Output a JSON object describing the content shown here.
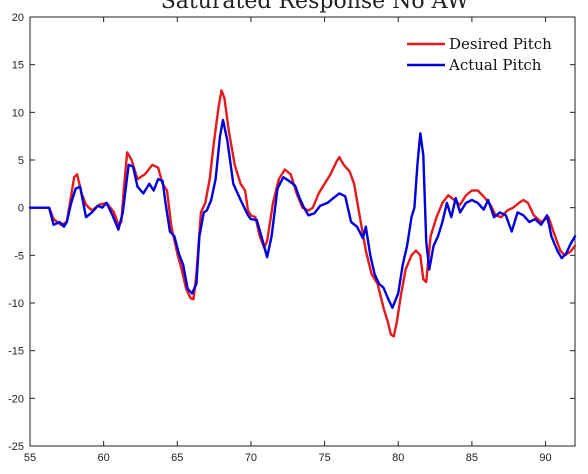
{
  "chart_data": {
    "type": "line",
    "title": "Saturated Response No AW",
    "xlabel": "",
    "ylabel": "",
    "xlim": [
      55,
      92
    ],
    "ylim": [
      -25,
      20
    ],
    "xticks": [
      55,
      60,
      65,
      70,
      75,
      80,
      85,
      90
    ],
    "yticks": [
      20,
      15,
      10,
      5,
      0,
      -5,
      -10,
      -15,
      -20,
      -25
    ],
    "grid": false,
    "legend_position": "top-right",
    "series": [
      {
        "name": "Desired Pitch",
        "color": "#e41a1c",
        "points": [
          [
            55,
            0
          ],
          [
            56.3,
            0
          ],
          [
            56.6,
            -1.2
          ],
          [
            57.1,
            -1.8
          ],
          [
            57.5,
            -1.5
          ],
          [
            58.0,
            3.2
          ],
          [
            58.2,
            3.5
          ],
          [
            58.5,
            1.5
          ],
          [
            58.8,
            0.3
          ],
          [
            59.2,
            -0.3
          ],
          [
            59.7,
            0.3
          ],
          [
            60.2,
            0.5
          ],
          [
            60.7,
            -0.5
          ],
          [
            61.0,
            -1.8
          ],
          [
            61.2,
            -1.5
          ],
          [
            61.4,
            2.5
          ],
          [
            61.6,
            5.8
          ],
          [
            61.9,
            5.0
          ],
          [
            62.3,
            3.0
          ],
          [
            62.8,
            3.5
          ],
          [
            63.3,
            4.5
          ],
          [
            63.7,
            4.2
          ],
          [
            64.0,
            2.5
          ],
          [
            64.3,
            1.8
          ],
          [
            64.6,
            -2.0
          ],
          [
            65.0,
            -4.8
          ],
          [
            65.3,
            -6.5
          ],
          [
            65.6,
            -8.5
          ],
          [
            65.9,
            -9.5
          ],
          [
            66.1,
            -9.6
          ],
          [
            66.3,
            -7.0
          ],
          [
            66.6,
            -0.5
          ],
          [
            66.9,
            0.5
          ],
          [
            67.2,
            3.0
          ],
          [
            67.5,
            7.0
          ],
          [
            67.8,
            10.5
          ],
          [
            68.0,
            12.3
          ],
          [
            68.2,
            11.5
          ],
          [
            68.5,
            8.0
          ],
          [
            68.9,
            4.5
          ],
          [
            69.3,
            2.5
          ],
          [
            69.6,
            1.8
          ],
          [
            69.8,
            -0.3
          ],
          [
            70.0,
            -0.8
          ],
          [
            70.3,
            -1.0
          ],
          [
            70.6,
            -3.0
          ],
          [
            70.9,
            -4.2
          ],
          [
            71.1,
            -3.5
          ],
          [
            71.5,
            0.5
          ],
          [
            71.9,
            3.0
          ],
          [
            72.3,
            4.0
          ],
          [
            72.7,
            3.5
          ],
          [
            73.1,
            1.5
          ],
          [
            73.5,
            0.0
          ],
          [
            73.9,
            -0.3
          ],
          [
            74.2,
            0.0
          ],
          [
            74.6,
            1.5
          ],
          [
            75.0,
            2.5
          ],
          [
            75.4,
            3.5
          ],
          [
            75.8,
            4.8
          ],
          [
            76.0,
            5.3
          ],
          [
            76.3,
            4.5
          ],
          [
            76.7,
            3.8
          ],
          [
            77.0,
            2.5
          ],
          [
            77.4,
            -1.0
          ],
          [
            77.8,
            -4.5
          ],
          [
            78.2,
            -7.0
          ],
          [
            78.6,
            -8.0
          ],
          [
            79.0,
            -10.5
          ],
          [
            79.3,
            -12.0
          ],
          [
            79.5,
            -13.3
          ],
          [
            79.7,
            -13.5
          ],
          [
            79.9,
            -12.0
          ],
          [
            80.2,
            -9.0
          ],
          [
            80.5,
            -6.5
          ],
          [
            80.9,
            -5.0
          ],
          [
            81.2,
            -4.5
          ],
          [
            81.5,
            -5.0
          ],
          [
            81.7,
            -7.5
          ],
          [
            81.9,
            -7.8
          ],
          [
            82.2,
            -3.0
          ],
          [
            82.6,
            -1.0
          ],
          [
            83.0,
            0.5
          ],
          [
            83.4,
            1.3
          ],
          [
            83.8,
            0.8
          ],
          [
            84.2,
            0.3
          ],
          [
            84.6,
            1.3
          ],
          [
            85.0,
            1.8
          ],
          [
            85.4,
            1.8
          ],
          [
            85.9,
            1.0
          ],
          [
            86.3,
            0.2
          ],
          [
            86.6,
            -0.8
          ],
          [
            87.0,
            -1.0
          ],
          [
            87.4,
            -0.3
          ],
          [
            87.8,
            0.0
          ],
          [
            88.2,
            0.5
          ],
          [
            88.5,
            0.8
          ],
          [
            88.8,
            0.5
          ],
          [
            89.2,
            -0.8
          ],
          [
            89.7,
            -1.5
          ],
          [
            90.2,
            -1.0
          ],
          [
            90.6,
            -2.8
          ],
          [
            91.0,
            -4.5
          ],
          [
            91.3,
            -5.0
          ],
          [
            91.7,
            -4.6
          ],
          [
            92.0,
            -4.0
          ]
        ]
      },
      {
        "name": "Actual Pitch",
        "color": "#0000dd",
        "points": [
          [
            55,
            0
          ],
          [
            56.3,
            0
          ],
          [
            56.6,
            -1.8
          ],
          [
            57.0,
            -1.5
          ],
          [
            57.3,
            -2.0
          ],
          [
            57.5,
            -1.5
          ],
          [
            57.8,
            0.5
          ],
          [
            58.1,
            2.0
          ],
          [
            58.4,
            2.2
          ],
          [
            58.8,
            -1.0
          ],
          [
            59.2,
            -0.5
          ],
          [
            59.6,
            0.2
          ],
          [
            59.9,
            0.0
          ],
          [
            60.2,
            0.5
          ],
          [
            60.6,
            -0.8
          ],
          [
            61.0,
            -2.3
          ],
          [
            61.3,
            -0.5
          ],
          [
            61.5,
            2.0
          ],
          [
            61.7,
            4.5
          ],
          [
            62.0,
            4.3
          ],
          [
            62.3,
            2.2
          ],
          [
            62.7,
            1.5
          ],
          [
            63.1,
            2.5
          ],
          [
            63.4,
            1.8
          ],
          [
            63.7,
            3.0
          ],
          [
            64.0,
            2.8
          ],
          [
            64.2,
            0.5
          ],
          [
            64.5,
            -2.5
          ],
          [
            64.8,
            -3.0
          ],
          [
            65.1,
            -4.8
          ],
          [
            65.4,
            -6.0
          ],
          [
            65.7,
            -8.5
          ],
          [
            66.0,
            -9.0
          ],
          [
            66.3,
            -8.0
          ],
          [
            66.5,
            -3.0
          ],
          [
            66.8,
            -0.5
          ],
          [
            67.0,
            -0.3
          ],
          [
            67.3,
            0.8
          ],
          [
            67.6,
            3.0
          ],
          [
            67.9,
            7.5
          ],
          [
            68.1,
            9.2
          ],
          [
            68.4,
            7.0
          ],
          [
            68.8,
            2.5
          ],
          [
            69.3,
            0.8
          ],
          [
            69.8,
            -0.8
          ],
          [
            70.0,
            -1.2
          ],
          [
            70.4,
            -1.3
          ],
          [
            70.8,
            -3.5
          ],
          [
            71.1,
            -5.2
          ],
          [
            71.4,
            -3.0
          ],
          [
            71.8,
            2.0
          ],
          [
            72.2,
            3.2
          ],
          [
            72.6,
            2.8
          ],
          [
            73.0,
            2.3
          ],
          [
            73.3,
            1.0
          ],
          [
            73.6,
            0.0
          ],
          [
            73.9,
            -0.8
          ],
          [
            74.3,
            -0.6
          ],
          [
            74.7,
            0.2
          ],
          [
            75.2,
            0.5
          ],
          [
            75.6,
            1.0
          ],
          [
            76.0,
            1.5
          ],
          [
            76.4,
            1.2
          ],
          [
            76.8,
            -1.5
          ],
          [
            77.2,
            -2.0
          ],
          [
            77.6,
            -3.2
          ],
          [
            77.8,
            -2.0
          ],
          [
            78.1,
            -5.0
          ],
          [
            78.4,
            -7.0
          ],
          [
            78.7,
            -8.0
          ],
          [
            79.0,
            -8.4
          ],
          [
            79.3,
            -9.5
          ],
          [
            79.6,
            -10.5
          ],
          [
            80.0,
            -9.0
          ],
          [
            80.3,
            -6.0
          ],
          [
            80.6,
            -4.0
          ],
          [
            80.9,
            -1.0
          ],
          [
            81.1,
            0.0
          ],
          [
            81.3,
            4.5
          ],
          [
            81.5,
            7.8
          ],
          [
            81.7,
            5.5
          ],
          [
            81.9,
            -3.5
          ],
          [
            82.1,
            -6.5
          ],
          [
            82.4,
            -4.0
          ],
          [
            82.7,
            -3.0
          ],
          [
            83.0,
            -1.5
          ],
          [
            83.3,
            0.5
          ],
          [
            83.6,
            -1.0
          ],
          [
            83.9,
            1.0
          ],
          [
            84.2,
            -0.5
          ],
          [
            84.6,
            0.5
          ],
          [
            85.0,
            0.8
          ],
          [
            85.4,
            0.5
          ],
          [
            85.8,
            -0.2
          ],
          [
            86.1,
            0.8
          ],
          [
            86.5,
            -1.0
          ],
          [
            86.9,
            -0.5
          ],
          [
            87.3,
            -0.8
          ],
          [
            87.7,
            -2.5
          ],
          [
            88.1,
            -0.5
          ],
          [
            88.5,
            -0.8
          ],
          [
            88.9,
            -1.5
          ],
          [
            89.3,
            -1.2
          ],
          [
            89.7,
            -1.8
          ],
          [
            90.1,
            -0.8
          ],
          [
            90.4,
            -3.0
          ],
          [
            90.8,
            -4.5
          ],
          [
            91.1,
            -5.3
          ],
          [
            91.4,
            -4.8
          ],
          [
            91.7,
            -3.8
          ],
          [
            92.0,
            -3.0
          ]
        ]
      }
    ]
  }
}
